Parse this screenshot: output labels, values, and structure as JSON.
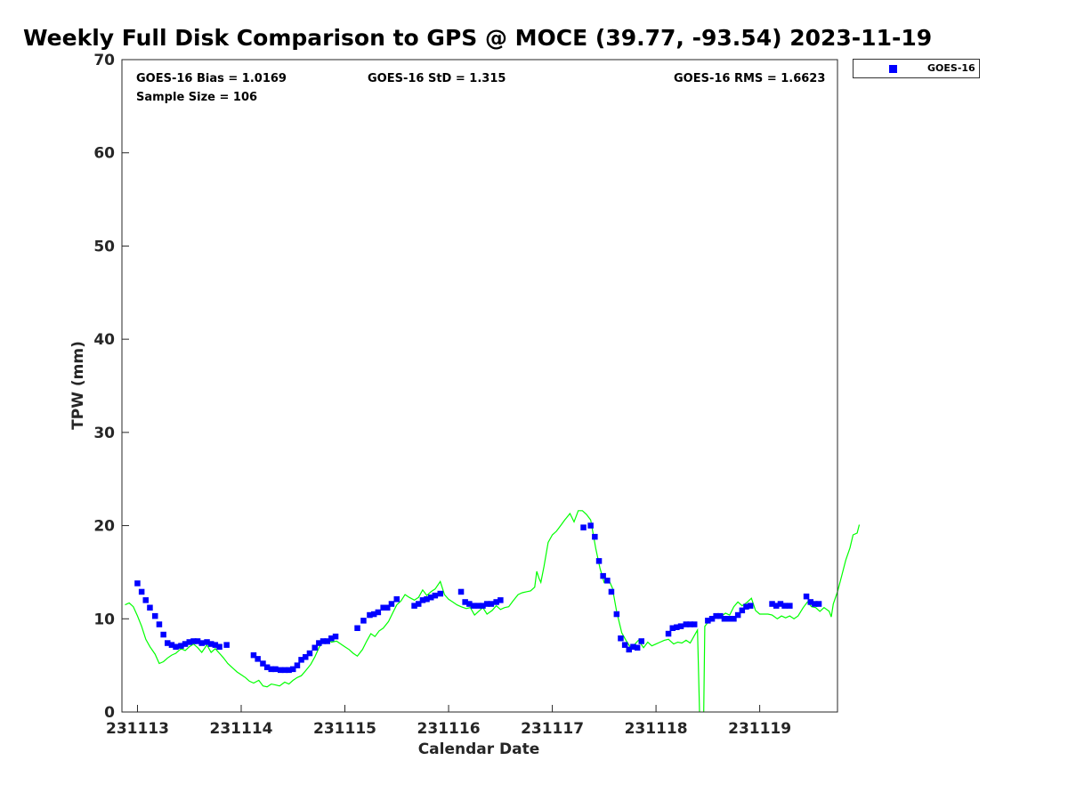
{
  "chart_data": {
    "type": "scatter",
    "title": "Weekly Full Disk Comparison to GPS @ MOCE (39.77, -93.54) 2023-11-19",
    "xlabel": "Calendar Date",
    "ylabel": "TPW (mm)",
    "xlim": [
      -0.15,
      6.75
    ],
    "ylim": [
      0,
      70
    ],
    "x_ticks": [
      0,
      1,
      2,
      3,
      4,
      5,
      6
    ],
    "x_tick_labels": [
      "231113",
      "231114",
      "231115",
      "231116",
      "231117",
      "231118",
      "231119"
    ],
    "y_ticks": [
      0,
      10,
      20,
      30,
      40,
      50,
      60,
      70
    ],
    "y_tick_labels": [
      "0",
      "10",
      "20",
      "30",
      "40",
      "50",
      "60",
      "70"
    ],
    "stats": {
      "bias": "GOES-16 Bias = 1.0169",
      "std": "GOES-16 StD = 1.315",
      "rms": "GOES-16 RMS = 1.6623",
      "sample": "Sample Size = 106"
    },
    "legend": {
      "label": "GOES-16",
      "position": "top-right outside"
    },
    "series": [
      {
        "name": "GOES-16",
        "kind": "markers",
        "color": "#0000ff",
        "points": [
          [
            0.0,
            13.8
          ],
          [
            0.04,
            12.9
          ],
          [
            0.08,
            12.0
          ],
          [
            0.12,
            11.2
          ],
          [
            0.17,
            10.3
          ],
          [
            0.21,
            9.4
          ],
          [
            0.25,
            8.3
          ],
          [
            0.29,
            7.4
          ],
          [
            0.33,
            7.2
          ],
          [
            0.37,
            7.0
          ],
          [
            0.42,
            7.1
          ],
          [
            0.46,
            7.3
          ],
          [
            0.5,
            7.5
          ],
          [
            0.54,
            7.6
          ],
          [
            0.58,
            7.6
          ],
          [
            0.62,
            7.4
          ],
          [
            0.67,
            7.5
          ],
          [
            0.71,
            7.3
          ],
          [
            0.75,
            7.2
          ],
          [
            0.79,
            7.0
          ],
          [
            0.86,
            7.2
          ],
          [
            1.12,
            6.1
          ],
          [
            1.16,
            5.7
          ],
          [
            1.21,
            5.2
          ],
          [
            1.25,
            4.8
          ],
          [
            1.29,
            4.6
          ],
          [
            1.33,
            4.6
          ],
          [
            1.38,
            4.5
          ],
          [
            1.42,
            4.5
          ],
          [
            1.46,
            4.5
          ],
          [
            1.5,
            4.6
          ],
          [
            1.54,
            5.0
          ],
          [
            1.58,
            5.6
          ],
          [
            1.62,
            5.9
          ],
          [
            1.66,
            6.3
          ],
          [
            1.71,
            6.9
          ],
          [
            1.75,
            7.4
          ],
          [
            1.79,
            7.6
          ],
          [
            1.83,
            7.6
          ],
          [
            1.87,
            7.9
          ],
          [
            1.91,
            8.1
          ],
          [
            2.12,
            9.0
          ],
          [
            2.18,
            9.8
          ],
          [
            2.24,
            10.4
          ],
          [
            2.28,
            10.5
          ],
          [
            2.32,
            10.7
          ],
          [
            2.37,
            11.2
          ],
          [
            2.41,
            11.2
          ],
          [
            2.45,
            11.6
          ],
          [
            2.5,
            12.1
          ],
          [
            2.67,
            11.4
          ],
          [
            2.71,
            11.6
          ],
          [
            2.75,
            12.0
          ],
          [
            2.79,
            12.1
          ],
          [
            2.83,
            12.3
          ],
          [
            2.87,
            12.5
          ],
          [
            2.92,
            12.7
          ],
          [
            3.12,
            12.9
          ],
          [
            3.16,
            11.8
          ],
          [
            3.2,
            11.6
          ],
          [
            3.24,
            11.4
          ],
          [
            3.29,
            11.4
          ],
          [
            3.33,
            11.4
          ],
          [
            3.37,
            11.6
          ],
          [
            3.41,
            11.6
          ],
          [
            3.46,
            11.8
          ],
          [
            3.5,
            12.0
          ],
          [
            4.3,
            19.8
          ],
          [
            4.37,
            20.0
          ],
          [
            4.41,
            18.8
          ],
          [
            4.45,
            16.2
          ],
          [
            4.49,
            14.6
          ],
          [
            4.53,
            14.1
          ],
          [
            4.57,
            12.9
          ],
          [
            4.62,
            10.5
          ],
          [
            4.66,
            7.9
          ],
          [
            4.7,
            7.2
          ],
          [
            4.74,
            6.7
          ],
          [
            4.78,
            7.0
          ],
          [
            4.82,
            6.9
          ],
          [
            4.86,
            7.6
          ],
          [
            5.12,
            8.4
          ],
          [
            5.16,
            9.0
          ],
          [
            5.2,
            9.1
          ],
          [
            5.24,
            9.2
          ],
          [
            5.29,
            9.4
          ],
          [
            5.33,
            9.4
          ],
          [
            5.37,
            9.4
          ],
          [
            5.5,
            9.8
          ],
          [
            5.54,
            10.0
          ],
          [
            5.58,
            10.3
          ],
          [
            5.62,
            10.3
          ],
          [
            5.66,
            10.0
          ],
          [
            5.71,
            10.0
          ],
          [
            5.75,
            10.0
          ],
          [
            5.79,
            10.4
          ],
          [
            5.83,
            10.9
          ],
          [
            5.87,
            11.3
          ],
          [
            5.91,
            11.4
          ],
          [
            6.12,
            11.6
          ],
          [
            6.16,
            11.4
          ],
          [
            6.2,
            11.6
          ],
          [
            6.24,
            11.4
          ],
          [
            6.29,
            11.4
          ],
          [
            6.45,
            12.4
          ],
          [
            6.49,
            11.8
          ],
          [
            6.53,
            11.6
          ],
          [
            6.57,
            11.6
          ]
        ]
      },
      {
        "name": "GPS",
        "kind": "line",
        "color": "#00ff00",
        "segments": [
          [
            [
              -0.12,
              11.5
            ],
            [
              -0.08,
              11.7
            ],
            [
              -0.04,
              11.3
            ],
            [
              0.0,
              10.3
            ],
            [
              0.04,
              9.2
            ],
            [
              0.08,
              7.8
            ],
            [
              0.12,
              7.0
            ],
            [
              0.17,
              6.2
            ],
            [
              0.21,
              5.2
            ],
            [
              0.25,
              5.4
            ],
            [
              0.29,
              5.8
            ],
            [
              0.33,
              6.1
            ],
            [
              0.37,
              6.3
            ],
            [
              0.42,
              6.8
            ],
            [
              0.46,
              6.6
            ],
            [
              0.5,
              7.0
            ],
            [
              0.54,
              7.3
            ],
            [
              0.58,
              6.9
            ],
            [
              0.62,
              6.4
            ],
            [
              0.67,
              7.2
            ],
            [
              0.71,
              6.4
            ],
            [
              0.75,
              6.8
            ],
            [
              0.79,
              6.3
            ],
            [
              0.83,
              5.8
            ],
            [
              0.87,
              5.2
            ],
            [
              0.92,
              4.7
            ],
            [
              0.96,
              4.3
            ],
            [
              1.0,
              4.0
            ],
            [
              1.04,
              3.7
            ],
            [
              1.08,
              3.3
            ],
            [
              1.12,
              3.1
            ],
            [
              1.17,
              3.4
            ],
            [
              1.21,
              2.8
            ],
            [
              1.25,
              2.7
            ],
            [
              1.29,
              3.0
            ],
            [
              1.33,
              2.9
            ],
            [
              1.37,
              2.8
            ],
            [
              1.42,
              3.2
            ],
            [
              1.46,
              3.0
            ],
            [
              1.5,
              3.4
            ],
            [
              1.54,
              3.7
            ],
            [
              1.58,
              3.9
            ],
            [
              1.62,
              4.4
            ],
            [
              1.67,
              5.1
            ],
            [
              1.71,
              5.9
            ],
            [
              1.75,
              6.9
            ],
            [
              1.79,
              7.6
            ],
            [
              1.83,
              7.8
            ],
            [
              1.87,
              7.5
            ],
            [
              1.92,
              7.6
            ],
            [
              1.96,
              7.3
            ],
            [
              2.0,
              7.0
            ],
            [
              2.04,
              6.7
            ],
            [
              2.08,
              6.3
            ],
            [
              2.12,
              6.0
            ],
            [
              2.17,
              6.7
            ],
            [
              2.21,
              7.6
            ],
            [
              2.25,
              8.4
            ],
            [
              2.29,
              8.1
            ],
            [
              2.33,
              8.7
            ],
            [
              2.37,
              9.0
            ],
            [
              2.42,
              9.7
            ],
            [
              2.46,
              10.6
            ],
            [
              2.5,
              11.5
            ],
            [
              2.54,
              11.9
            ],
            [
              2.58,
              12.6
            ],
            [
              2.62,
              12.3
            ],
            [
              2.67,
              12.0
            ],
            [
              2.71,
              12.3
            ],
            [
              2.75,
              13.1
            ],
            [
              2.79,
              12.5
            ],
            [
              2.83,
              12.9
            ],
            [
              2.87,
              13.2
            ],
            [
              2.92,
              14.0
            ],
            [
              2.96,
              12.6
            ],
            [
              3.0,
              12.1
            ],
            [
              3.04,
              11.8
            ],
            [
              3.08,
              11.5
            ],
            [
              3.12,
              11.3
            ],
            [
              3.17,
              11.1
            ],
            [
              3.21,
              11.2
            ],
            [
              3.25,
              10.4
            ],
            [
              3.29,
              10.8
            ],
            [
              3.33,
              11.2
            ],
            [
              3.37,
              10.5
            ],
            [
              3.42,
              10.9
            ],
            [
              3.46,
              11.4
            ],
            [
              3.5,
              11.0
            ],
            [
              3.54,
              11.2
            ],
            [
              3.58,
              11.3
            ],
            [
              3.62,
              11.9
            ],
            [
              3.67,
              12.6
            ],
            [
              3.71,
              12.8
            ],
            [
              3.75,
              12.9
            ],
            [
              3.79,
              13.0
            ],
            [
              3.83,
              13.4
            ],
            [
              3.85,
              15.1
            ],
            [
              3.87,
              14.4
            ],
            [
              3.89,
              13.9
            ],
            [
              3.92,
              15.6
            ],
            [
              3.96,
              18.2
            ],
            [
              4.0,
              19.0
            ],
            [
              4.04,
              19.4
            ],
            [
              4.08,
              20.0
            ],
            [
              4.12,
              20.6
            ],
            [
              4.17,
              21.3
            ],
            [
              4.21,
              20.4
            ],
            [
              4.25,
              21.6
            ],
            [
              4.29,
              21.6
            ],
            [
              4.33,
              21.2
            ],
            [
              4.37,
              20.6
            ],
            [
              4.42,
              17.5
            ],
            [
              4.46,
              15.4
            ],
            [
              4.5,
              13.9
            ],
            [
              4.54,
              14.3
            ],
            [
              4.58,
              13.3
            ],
            [
              4.62,
              10.8
            ],
            [
              4.67,
              8.5
            ],
            [
              4.71,
              7.7
            ],
            [
              4.75,
              7.0
            ],
            [
              4.79,
              7.2
            ],
            [
              4.83,
              7.7
            ],
            [
              4.88,
              6.9
            ],
            [
              4.92,
              7.5
            ],
            [
              4.96,
              7.1
            ],
            [
              5.0,
              7.3
            ],
            [
              5.04,
              7.5
            ],
            [
              5.08,
              7.7
            ],
            [
              5.12,
              7.8
            ],
            [
              5.17,
              7.3
            ],
            [
              5.21,
              7.5
            ],
            [
              5.25,
              7.4
            ],
            [
              5.29,
              7.7
            ],
            [
              5.33,
              7.4
            ],
            [
              5.37,
              8.2
            ],
            [
              5.4,
              8.8
            ],
            [
              5.42,
              0.0
            ]
          ],
          [
            [
              5.46,
              0.0
            ],
            [
              5.47,
              9.2
            ],
            [
              5.5,
              9.6
            ],
            [
              5.54,
              9.8
            ],
            [
              5.58,
              10.3
            ],
            [
              5.62,
              10.2
            ],
            [
              5.67,
              10.6
            ],
            [
              5.71,
              10.4
            ],
            [
              5.75,
              11.3
            ],
            [
              5.79,
              11.8
            ],
            [
              5.83,
              11.4
            ],
            [
              5.87,
              11.7
            ],
            [
              5.92,
              12.2
            ],
            [
              5.96,
              10.9
            ],
            [
              6.0,
              10.5
            ],
            [
              6.04,
              10.5
            ],
            [
              6.08,
              10.5
            ],
            [
              6.12,
              10.4
            ],
            [
              6.17,
              10.0
            ],
            [
              6.21,
              10.3
            ],
            [
              6.25,
              10.1
            ],
            [
              6.29,
              10.3
            ],
            [
              6.33,
              10.0
            ],
            [
              6.37,
              10.3
            ],
            [
              6.42,
              11.2
            ],
            [
              6.46,
              11.8
            ],
            [
              6.5,
              11.3
            ],
            [
              6.54,
              11.2
            ],
            [
              6.58,
              10.8
            ],
            [
              6.62,
              11.2
            ],
            [
              6.67,
              10.8
            ],
            [
              6.69,
              10.2
            ],
            [
              6.71,
              11.6
            ],
            [
              6.75,
              12.9
            ],
            [
              6.79,
              14.6
            ],
            [
              6.83,
              16.3
            ],
            [
              6.87,
              17.6
            ],
            [
              6.9,
              19.0
            ],
            [
              6.94,
              19.2
            ],
            [
              6.96,
              20.1
            ]
          ]
        ]
      }
    ]
  }
}
